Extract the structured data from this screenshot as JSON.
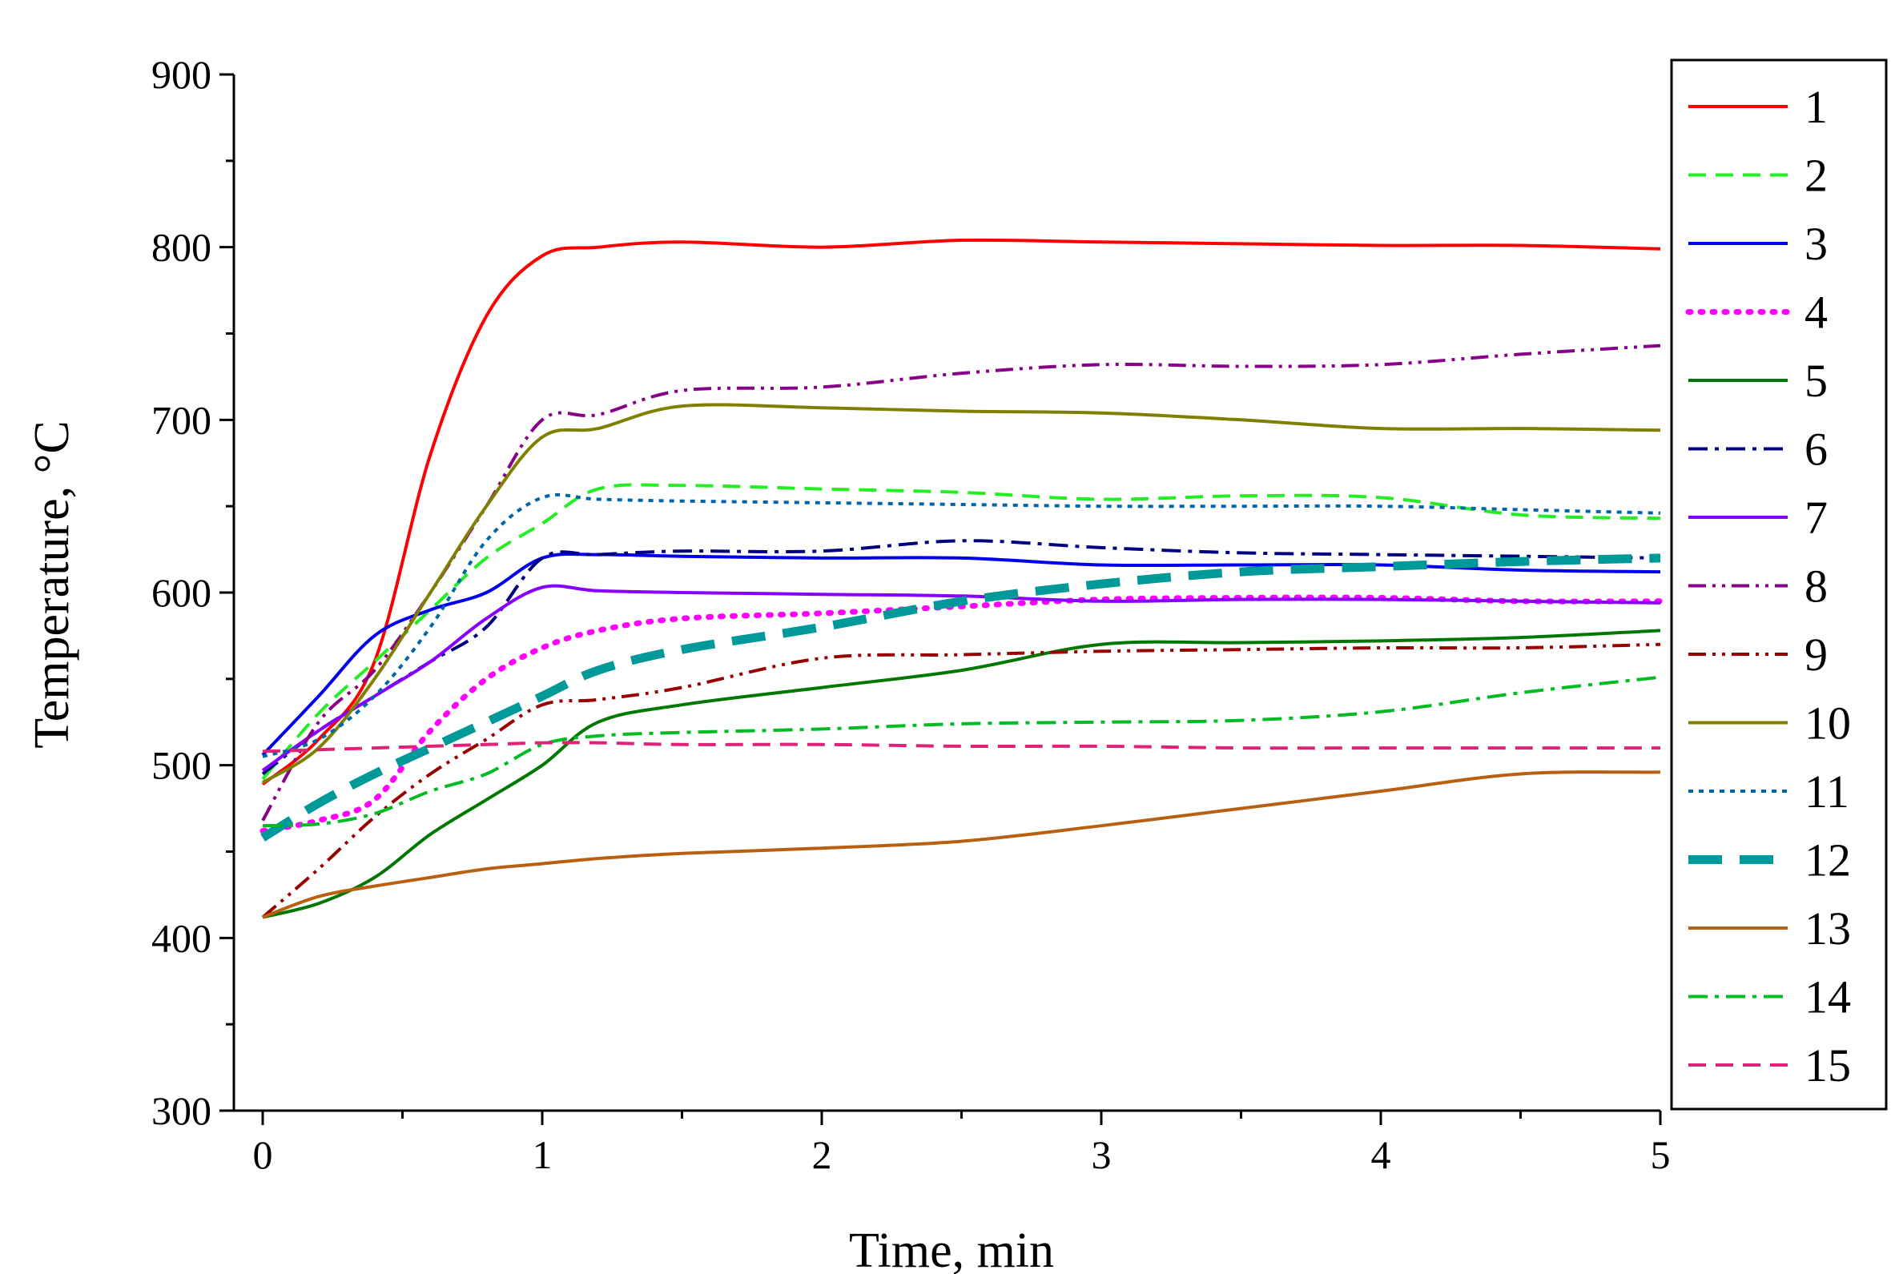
{
  "chart_data": {
    "type": "line",
    "title": "",
    "xlabel": "Time, min",
    "ylabel_main": "Temperature, ",
    "ylabel_unit": "°C",
    "xlim": [
      0,
      5
    ],
    "ylim": [
      300,
      900
    ],
    "xticks": [
      0,
      1,
      2,
      3,
      4,
      5
    ],
    "xtick_labels": [
      "0",
      "1",
      "2",
      "3",
      "4",
      "5"
    ],
    "yticks": [
      300,
      400,
      500,
      600,
      700,
      800,
      900
    ],
    "ytick_labels": [
      "300",
      "400",
      "500",
      "600",
      "700",
      "800",
      "900"
    ],
    "grid": false,
    "legend_position": "right",
    "x": [
      0,
      0.2,
      0.4,
      0.6,
      0.8,
      1.0,
      1.2,
      1.5,
      2.0,
      2.5,
      3.0,
      3.5,
      4.0,
      4.5,
      5.0
    ],
    "series": [
      {
        "name": "1",
        "color": "#ff0000",
        "style": "solid",
        "values": [
          489,
          515,
          560,
          680,
          760,
          795,
          800,
          803,
          800,
          804,
          803,
          802,
          801,
          801,
          799
        ]
      },
      {
        "name": "2",
        "color": "#22ee22",
        "style": "dash",
        "values": [
          492,
          530,
          560,
          590,
          620,
          640,
          660,
          662,
          660,
          658,
          654,
          656,
          655,
          645,
          643
        ]
      },
      {
        "name": "3",
        "color": "#0000ee",
        "style": "solid",
        "values": [
          506,
          540,
          575,
          590,
          600,
          620,
          622,
          621,
          620,
          620,
          616,
          616,
          616,
          613,
          612
        ]
      },
      {
        "name": "4",
        "color": "#ff00ff",
        "style": "dot",
        "values": [
          462,
          468,
          480,
          520,
          550,
          568,
          578,
          585,
          588,
          592,
          596,
          597,
          597,
          595,
          595
        ]
      },
      {
        "name": "5",
        "color": "#007700",
        "style": "solid",
        "values": [
          412,
          420,
          435,
          460,
          480,
          500,
          525,
          535,
          545,
          555,
          570,
          571,
          572,
          574,
          578
        ]
      },
      {
        "name": "6",
        "color": "#000080",
        "style": "dashdot",
        "values": [
          495,
          520,
          540,
          560,
          580,
          620,
          622,
          624,
          624,
          630,
          626,
          623,
          622,
          621,
          620
        ]
      },
      {
        "name": "7",
        "color": "#8800ff",
        "style": "solid",
        "values": [
          497,
          520,
          540,
          560,
          585,
          603,
          601,
          600,
          599,
          598,
          595,
          596,
          596,
          595,
          594
        ]
      },
      {
        "name": "8",
        "color": "#880088",
        "style": "dashdotdot",
        "values": [
          468,
          525,
          555,
          600,
          650,
          700,
          703,
          717,
          719,
          727,
          732,
          731,
          732,
          738,
          743
        ]
      },
      {
        "name": "9",
        "color": "#990000",
        "style": "dashdotdot",
        "values": [
          412,
          440,
          470,
          495,
          515,
          535,
          538,
          545,
          562,
          564,
          566,
          567,
          568,
          568,
          570
        ]
      },
      {
        "name": "10",
        "color": "#808000",
        "style": "solid",
        "values": [
          490,
          510,
          550,
          600,
          650,
          690,
          695,
          708,
          707,
          705,
          704,
          700,
          695,
          695,
          694
        ]
      },
      {
        "name": "11",
        "color": "#0066aa",
        "style": "shortdot",
        "values": [
          505,
          515,
          540,
          580,
          630,
          655,
          654,
          653,
          652,
          651,
          650,
          650,
          650,
          648,
          646
        ]
      },
      {
        "name": "12",
        "color": "#009999",
        "style": "bigdash",
        "values": [
          458,
          478,
          495,
          510,
          525,
          540,
          555,
          567,
          580,
          595,
          605,
          612,
          615,
          618,
          620
        ]
      },
      {
        "name": "13",
        "color": "#b86010",
        "style": "solid",
        "values": [
          412,
          424,
          430,
          435,
          440,
          443,
          446,
          449,
          452,
          456,
          465,
          475,
          485,
          495,
          496
        ]
      },
      {
        "name": "14",
        "color": "#00bb22",
        "style": "dashdot",
        "values": [
          465,
          466,
          472,
          485,
          495,
          512,
          517,
          519,
          521,
          524,
          525,
          526,
          531,
          542,
          551
        ]
      },
      {
        "name": "15",
        "color": "#dd2277",
        "style": "dash",
        "values": [
          508,
          509,
          510,
          511,
          512,
          513,
          513,
          512,
          512,
          511,
          511,
          510,
          510,
          510,
          510
        ]
      }
    ]
  }
}
